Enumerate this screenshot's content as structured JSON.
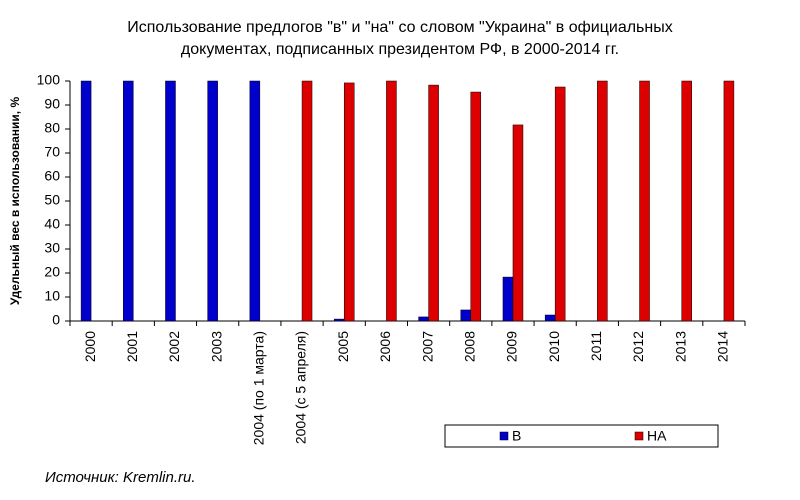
{
  "chart_data": {
    "type": "bar",
    "title": [
      "Использование предлогов \"в\" и \"на\" со словом \"Украина\" в официальных",
      "документах, подписанных президентом РФ, в 2000-2014 гг."
    ],
    "y_label": "Удельный вес в использовании, %",
    "source": "Источник: Kremlin.ru.",
    "categories": [
      "2000",
      "2001",
      "2002",
      "2003",
      "2004 (по 1 марта)",
      "2004 (с 5 апреля)",
      "2005",
      "2006",
      "2007",
      "2008",
      "2009",
      "2010",
      "2011",
      "2012",
      "2013",
      "2014"
    ],
    "series": [
      {
        "name": "В",
        "color": "#0000cc",
        "values": [
          100,
          100,
          100,
          100,
          100,
          0,
          0.8,
          0,
          1.7,
          4.6,
          18.3,
          2.5,
          0,
          0,
          0,
          0
        ]
      },
      {
        "name": "НА",
        "color": "#dd0000",
        "values": [
          0,
          0,
          0,
          0,
          0,
          100,
          99.2,
          100,
          98.3,
          95.4,
          81.7,
          97.5,
          100,
          100,
          100,
          100
        ]
      }
    ],
    "ylim": [
      0,
      100
    ],
    "yticks": [
      0,
      10,
      20,
      30,
      40,
      50,
      60,
      70,
      80,
      90,
      100
    ],
    "legend": "bottom-right"
  }
}
